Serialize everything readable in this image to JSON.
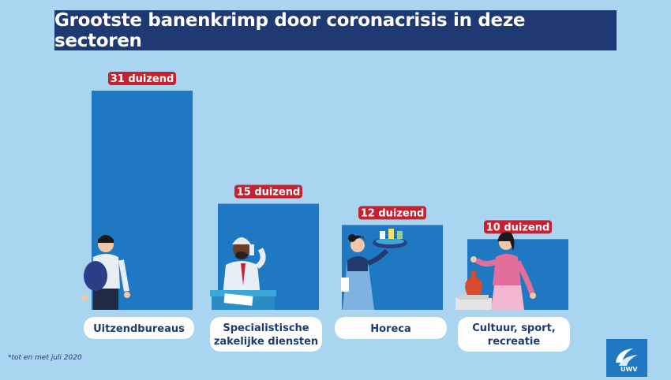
{
  "title": "Grootste banenkrimp door coronacrisis in deze sectoren",
  "footnote": "*tot en met juli 2020",
  "logo_text": "UWV",
  "colors": {
    "background": "#a9d5f0",
    "title_bg": "#1f3a73",
    "bar": "#1e78c2",
    "badge": "#c8202f",
    "label_bg": "#ffffff",
    "label_text": "#1f3a73"
  },
  "icons": [
    "temp-worker-icon",
    "office-worker-icon",
    "waitress-icon",
    "museum-guide-icon"
  ],
  "chart_data": {
    "type": "bar",
    "title": "Grootste banenkrimp door coronacrisis in deze sectoren",
    "categories": [
      "Uitzendbureaus",
      "Specialistische\nzakelijke diensten",
      "Horeca",
      "Cultuur, sport,\nrecreatie"
    ],
    "values": [
      31,
      15,
      12,
      10
    ],
    "data_labels": [
      "31 duizend",
      "15 duizend",
      "12 duizend",
      "10 duizend"
    ],
    "xlabel": "",
    "ylabel": "",
    "ylim": [
      0,
      31
    ],
    "grid": false,
    "legend": "none"
  }
}
